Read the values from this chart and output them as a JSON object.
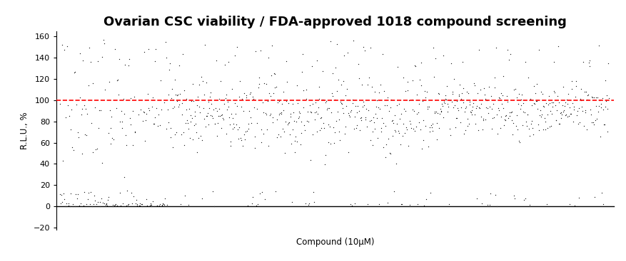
{
  "title": "Ovarian CSC viability / FDA-approved 1018 compound screening",
  "xlabel": "Compound (10μM)",
  "ylabel": "R.L.U., %",
  "ylim": [
    -22,
    165
  ],
  "yticks": [
    -20,
    0,
    20,
    40,
    60,
    80,
    100,
    120,
    140,
    160
  ],
  "n_compounds": 1018,
  "hline_y": 100,
  "hline_color": "#ff0000",
  "dot_color": "#1a1a1a",
  "dot_size": 3.5,
  "seed": 42,
  "figsize": [
    8.78,
    3.67
  ],
  "dpi": 100,
  "title_fontsize": 13,
  "label_fontsize": 8.5,
  "tick_fontsize": 8,
  "background_color": "#ffffff"
}
